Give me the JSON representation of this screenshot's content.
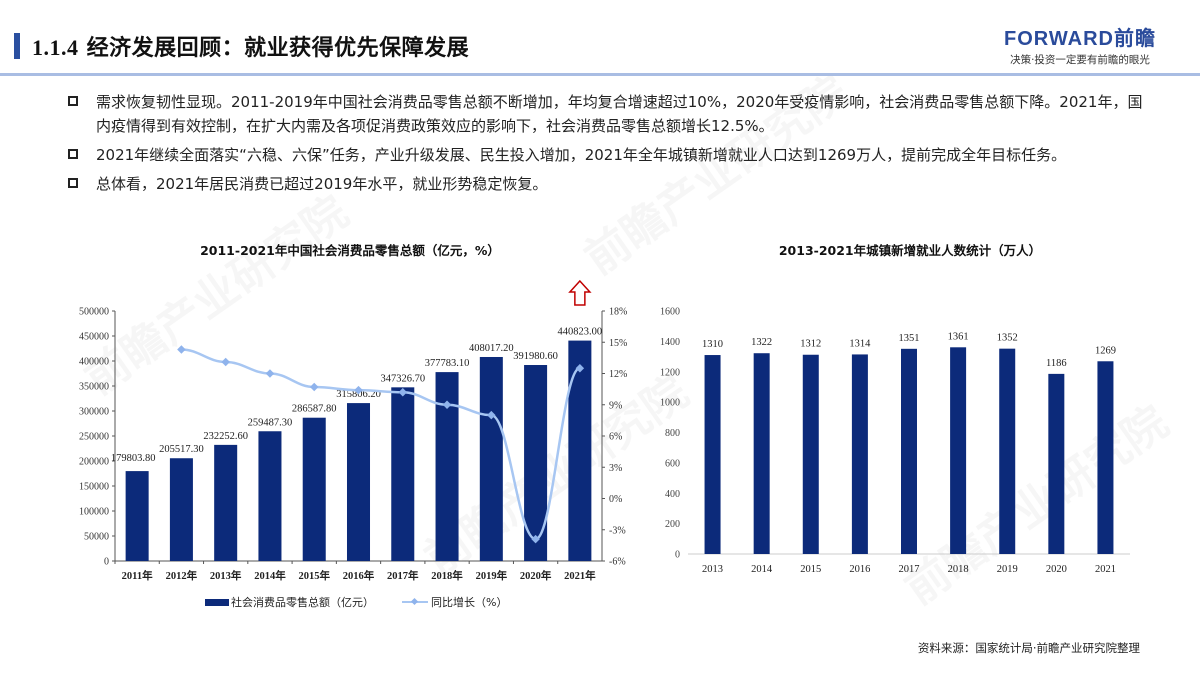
{
  "header": {
    "section_number": "1.1.4",
    "title": "经济发展回顾：就业获得优先保障发展",
    "logo_main": "FORWARD前瞻",
    "logo_tagline": "决策·投资一定要有前瞻的眼光"
  },
  "bullets": [
    "需求恢复韧性显现。2011-2019年中国社会消费品零售总额不断增加，年均复合增速超过10%，2020年受疫情影响，社会消费品零售总额下降。2021年，国内疫情得到有效控制，在扩大内需及各项促消费政策效应的影响下，社会消费品零售总额增长12.5%。",
    "2021年继续全面落实“六稳、六保”任务，产业升级发展、民生投入增加，2021年全年城镇新增就业人口达到1269万人，提前完成全年目标任务。",
    "总体看，2021年居民消费已超过2019年水平，就业形势稳定恢复。"
  ],
  "watermark": "前瞻产业研究院",
  "source": "资料来源：国家统计局·前瞻产业研究院整理",
  "colors": {
    "bar": "#0c2a7a",
    "line": "#a7c6f2",
    "accent": "#2a4fa0",
    "arrow": "#c00000"
  },
  "chart_data": [
    {
      "type": "bar",
      "title": "2011-2021年中国社会消费品零售总额（亿元，%）",
      "categories": [
        "2011年",
        "2012年",
        "2013年",
        "2014年",
        "2015年",
        "2016年",
        "2017年",
        "2018年",
        "2019年",
        "2020年",
        "2021年"
      ],
      "series": [
        {
          "name": "社会消费品零售总额（亿元）",
          "type": "bar",
          "axis": "left",
          "values": [
            179803.8,
            205517.3,
            232252.6,
            259487.3,
            286587.8,
            315806.2,
            347326.7,
            377783.1,
            408017.2,
            391980.6,
            440823.0
          ],
          "labels": [
            "179803.80",
            "205517.30",
            "232252.60",
            "259487.30",
            "286587.80",
            "315806.20",
            "347326.70",
            "377783.10",
            "408017.20",
            "391980.60",
            "440823.00"
          ]
        },
        {
          "name": "同比增长（%）",
          "type": "line",
          "axis": "right",
          "values": [
            null,
            14.3,
            13.1,
            12.0,
            10.7,
            10.4,
            10.2,
            9.0,
            8.0,
            -3.9,
            12.5
          ]
        }
      ],
      "left_axis": {
        "ylim": [
          0,
          500000
        ],
        "ticks": [
          "0",
          "50000",
          "100000",
          "150000",
          "200000",
          "250000",
          "300000",
          "350000",
          "400000",
          "450000",
          "500000"
        ]
      },
      "right_axis": {
        "ylim": [
          -6,
          18
        ],
        "ticks": [
          "-6%",
          "-3%",
          "0%",
          "3%",
          "6%",
          "9%",
          "12%",
          "15%",
          "18%"
        ]
      },
      "annotation": "red up arrow above 2021",
      "legend_position": "bottom",
      "grid": false
    },
    {
      "type": "bar",
      "title": "2013-2021年城镇新增就业人数统计（万人）",
      "categories": [
        "2013",
        "2014",
        "2015",
        "2016",
        "2017",
        "2018",
        "2019",
        "2020",
        "2021"
      ],
      "values": [
        1310,
        1322,
        1312,
        1314,
        1351,
        1361,
        1352,
        1186,
        1269
      ],
      "ylim": [
        0,
        1600
      ],
      "ticks": [
        "0",
        "200",
        "400",
        "600",
        "800",
        "1000",
        "1200",
        "1400",
        "1600"
      ],
      "grid": false
    }
  ]
}
